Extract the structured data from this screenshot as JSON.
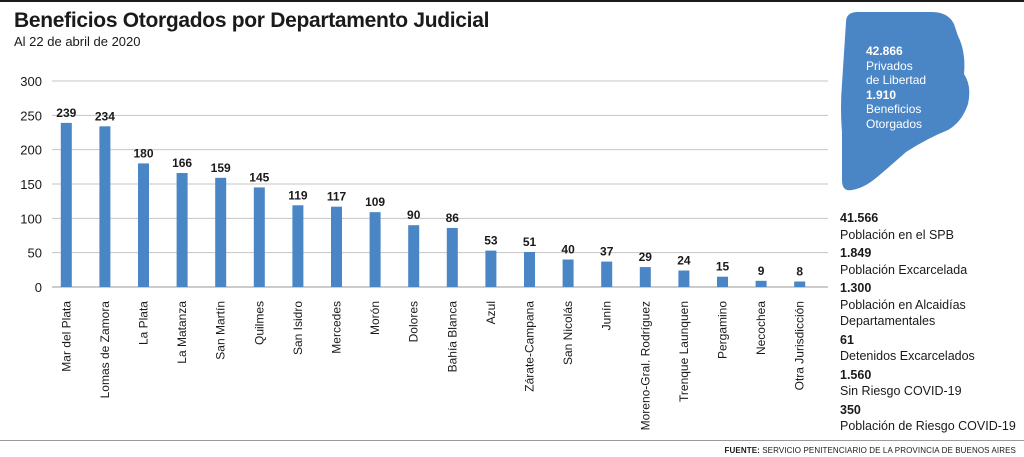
{
  "header": {
    "title": "Beneficios Otorgados por Departamento Judicial",
    "subtitle": "Al 22 de abril de 2020"
  },
  "badge": {
    "color": "#4a86c5",
    "line1_value": "42.866",
    "line1_label_a": "Privados",
    "line1_label_b": "de Libertad",
    "line2_value": "1.910",
    "line2_label_a": "Beneficios",
    "line2_label_b": "Otorgados"
  },
  "stats": [
    {
      "value": "41.566",
      "label": "Población en  el  SPB"
    },
    {
      "value": "1.849",
      "label": "Población Excarcelada"
    },
    {
      "value": "1.300",
      "label": "Población en Alcaidías Departamentales"
    },
    {
      "value": "61",
      "label": "Detenidos Excarcelados"
    },
    {
      "value": "1.560",
      "label": "Sin Riesgo COVID-19"
    },
    {
      "value": "350",
      "label": "Población de Riesgo COVID-19"
    }
  ],
  "footer": {
    "source_label": "FUENTE:",
    "source_text": "SERVICIO PENITENCIARIO DE LA PROVINCIA DE BUENOS AIRES"
  },
  "chart_data": {
    "type": "bar",
    "title": "Beneficios Otorgados por Departamento Judicial",
    "subtitle": "Al 22 de abril de 2020",
    "categories": [
      "Mar del Plata",
      "Lomas de Zamora",
      "La Plata",
      "La Matanza",
      "San Martín",
      "Quilmes",
      "San Isidro",
      "Mercedes",
      "Morón",
      "Dolores",
      "Bahía Blanca",
      "Azul",
      "Zárate-Campana",
      "San Nicolás",
      "Junín",
      "Moreno-Gral. Rodríguez",
      "Trenque Launquen",
      "Pergamino",
      "Necochea",
      "Otra Jurisdicción"
    ],
    "values": [
      239,
      234,
      180,
      166,
      159,
      145,
      119,
      117,
      109,
      90,
      86,
      53,
      51,
      40,
      37,
      29,
      24,
      15,
      9,
      8
    ],
    "ylim": [
      0,
      300
    ],
    "yticks": [
      0,
      50,
      100,
      150,
      200,
      250,
      300
    ],
    "grid": true,
    "bar_color": "#4a86c5"
  }
}
